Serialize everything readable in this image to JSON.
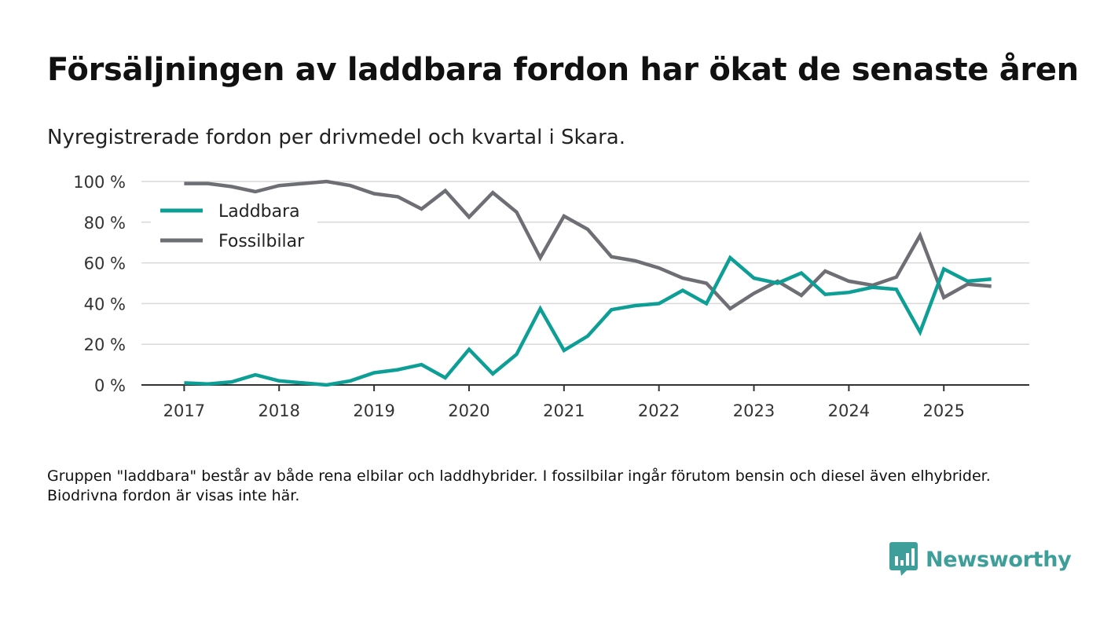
{
  "title": "Försäljningen av laddbara fordon har ökat de senaste åren",
  "subtitle": "Nyregistrerade fordon per drivmedel och kvartal i Skara.",
  "footnote": "Gruppen \"laddbara\" består av både rena elbilar och laddhybrider. I fossilbilar ingår förutom bensin och diesel även elhybrider. Biodrivna fordon är visas inte här.",
  "brand": {
    "name": "Newsworthy",
    "color": "#3e9e9a",
    "icon": "bar-chart-bubble-icon"
  },
  "chart_data": {
    "type": "line",
    "title": "Försäljningen av laddbara fordon har ökat de senaste åren",
    "xlabel": "",
    "ylabel": "",
    "xlim": [
      2016.55,
      2025.9
    ],
    "ylim": [
      0,
      100
    ],
    "grid": true,
    "legend_position": "top-left",
    "y_ticks": [
      0,
      20,
      40,
      60,
      80,
      100
    ],
    "y_tick_labels": [
      "0 %",
      "20 %",
      "40 %",
      "60 %",
      "80 %",
      "100 %"
    ],
    "x_ticks": [
      2017,
      2018,
      2019,
      2020,
      2021,
      2022,
      2023,
      2024,
      2025
    ],
    "x_tick_labels": [
      "2017",
      "2018",
      "2019",
      "2020",
      "2021",
      "2022",
      "2023",
      "2024",
      "2025"
    ],
    "x": [
      2017.0,
      2017.25,
      2017.5,
      2017.75,
      2018.0,
      2018.25,
      2018.5,
      2018.75,
      2019.0,
      2019.25,
      2019.5,
      2019.75,
      2020.0,
      2020.25,
      2020.5,
      2020.75,
      2021.0,
      2021.25,
      2021.5,
      2021.75,
      2022.0,
      2022.25,
      2022.5,
      2022.75,
      2023.0,
      2023.25,
      2023.5,
      2023.75,
      2024.0,
      2024.25,
      2024.5,
      2024.75,
      2025.0,
      2025.25,
      2025.5
    ],
    "series": [
      {
        "name": "Laddbara",
        "color": "#0d9f96",
        "values": [
          1,
          0.5,
          1.5,
          5,
          2,
          1,
          0,
          2,
          6,
          7.5,
          10,
          3.5,
          17.5,
          5.5,
          15,
          37.5,
          17,
          24,
          37,
          39,
          40,
          46.5,
          40,
          62.5,
          52.5,
          50,
          55,
          44.5,
          45.5,
          48,
          47,
          26,
          57,
          51,
          52
        ]
      },
      {
        "name": "Fossilbilar",
        "color": "#6e6e75",
        "values": [
          99,
          99,
          97.5,
          95,
          98,
          99,
          100,
          98,
          94,
          92.5,
          86.5,
          95.5,
          82.5,
          94.5,
          85,
          62.5,
          83,
          76.5,
          63,
          61,
          57.5,
          52.5,
          50,
          37.5,
          45,
          51,
          44,
          56,
          51,
          49,
          53,
          73.5,
          43,
          49.5,
          48.5
        ]
      }
    ]
  }
}
